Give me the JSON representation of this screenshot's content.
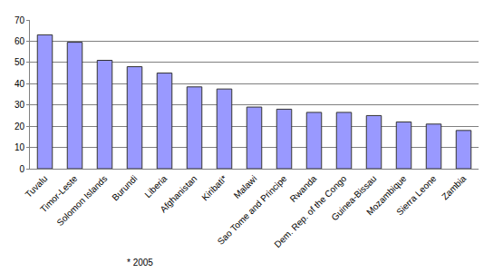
{
  "chart_data": {
    "type": "bar",
    "categories": [
      "Tuvalu",
      "Timor-Leste",
      "Solomon Islands",
      "Burundi",
      "Liberia",
      "Afghanistan",
      "Kiribati*",
      "Malawi",
      "Sao Tome and Principe",
      "Rwanda",
      "Dem. Rep. of the Congo",
      "Guinea-Bissau",
      "Mozambique",
      "Sierra Leone",
      "Zambia"
    ],
    "values": [
      63,
      59.5,
      51,
      48,
      45,
      38.5,
      37.5,
      29,
      28,
      26.5,
      26.5,
      25,
      22,
      21,
      18
    ],
    "color": "#9999ff",
    "ylim": [
      0,
      70
    ],
    "yticks": [
      0,
      10,
      20,
      30,
      40,
      50,
      60,
      70
    ],
    "grid": true,
    "annotations": [
      "* 2005"
    ]
  }
}
